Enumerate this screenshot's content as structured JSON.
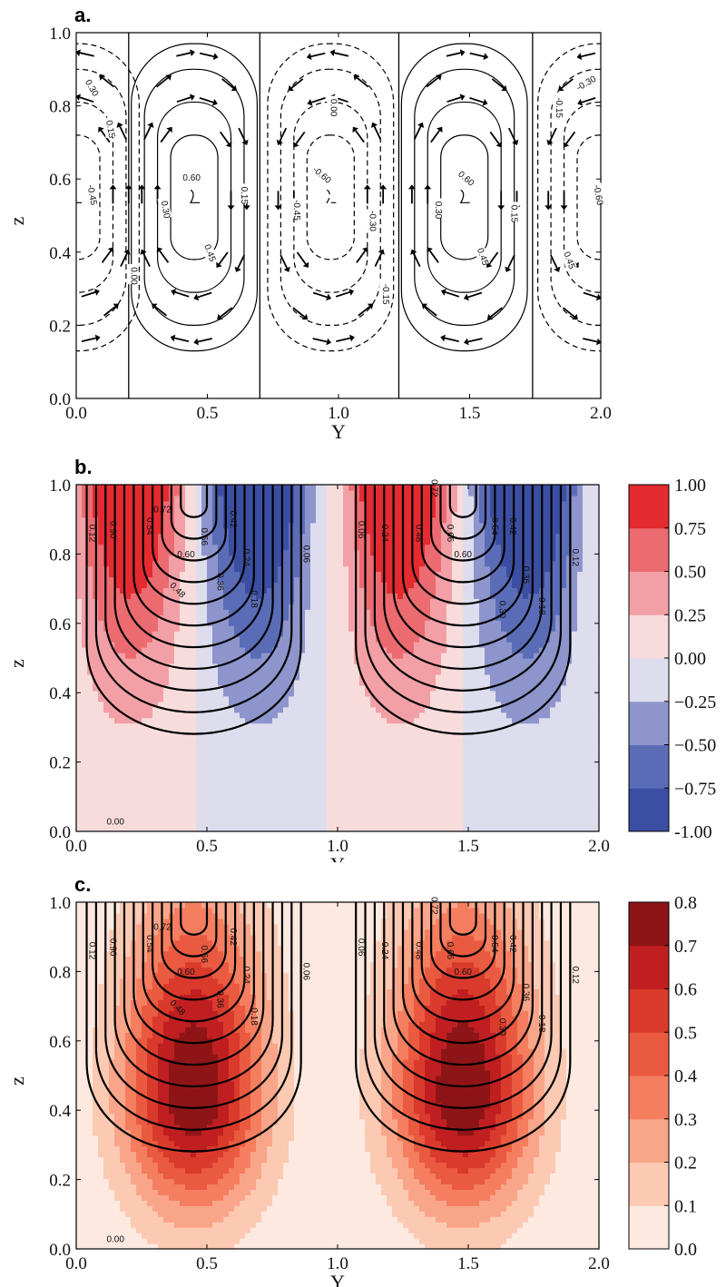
{
  "chart_data": [
    {
      "panel_label": "a.",
      "type": "contour",
      "xlabel": "Y",
      "ylabel": "z",
      "xlim": [
        0.0,
        2.0
      ],
      "ylim": [
        0.0,
        1.0
      ],
      "x_ticks": [
        "0.0",
        "0.5",
        "1.0",
        "1.5",
        "2.0"
      ],
      "y_ticks": [
        "0.0",
        "0.2",
        "0.4",
        "0.6",
        "0.8",
        "1.0"
      ],
      "overlay": "velocity vectors (circulation cells)",
      "cells": [
        {
          "center_y": 0.0,
          "sign": "negative",
          "peak": -0.6
        },
        {
          "center_y": 0.45,
          "sign": "positive",
          "peak": 0.6
        },
        {
          "center_y": 0.97,
          "sign": "negative",
          "peak": -0.6
        },
        {
          "center_y": 1.48,
          "sign": "positive",
          "peak": 0.6
        },
        {
          "center_y": 2.0,
          "sign": "negative",
          "peak": -0.6
        }
      ],
      "cell_boundaries_y": [
        0.2,
        0.7,
        1.23,
        1.74
      ],
      "contour_levels": [
        -0.6,
        -0.45,
        -0.3,
        -0.15,
        0.0,
        0.15,
        0.3,
        0.45,
        0.6
      ],
      "contour_labels": [
        "0.30",
        "0.15",
        "-0.45",
        "0.60",
        "0.30",
        "0.15",
        "0.45",
        "0.00",
        "-0.60",
        "-0.45",
        "-0.30",
        "-0.15",
        "0.00",
        "0.60",
        "0.30",
        "0.15",
        "0.45",
        "-0.30",
        "-0.15",
        "-0.60",
        "0.45"
      ]
    },
    {
      "panel_label": "b.",
      "type": "heatmap",
      "xlabel": "Y",
      "ylabel": "z",
      "xlim": [
        0.0,
        2.0
      ],
      "ylim": [
        0.0,
        1.0
      ],
      "x_ticks": [
        "0.0",
        "0.5",
        "1.0",
        "1.5",
        "2.0"
      ],
      "y_ticks": [
        "0.0",
        "0.2",
        "0.4",
        "0.6",
        "0.8",
        "1.0"
      ],
      "colorbar_ticks": [
        "1.00",
        "0.75",
        "0.50",
        "0.25",
        "0.00",
        "−0.25",
        "−0.50",
        "−0.75",
        "-1.00"
      ],
      "colorbar_levels": [
        -1.0,
        -0.75,
        -0.5,
        -0.25,
        0.0,
        0.25,
        0.5,
        0.75,
        1.0
      ],
      "colorbar_colors": [
        "#3b4ea1",
        "#5b6cb7",
        "#8d95cc",
        "#ddddee",
        "#f8dcdc",
        "#f2a0a6",
        "#ec6b70",
        "#e32b30"
      ],
      "lobe_centers": [
        {
          "y": 0.2,
          "sign": "positive"
        },
        {
          "y": 0.7,
          "sign": "negative"
        },
        {
          "y": 1.23,
          "sign": "positive"
        },
        {
          "y": 1.74,
          "sign": "negative"
        }
      ],
      "sign_change_y": [
        0.45,
        0.97,
        1.48
      ],
      "contour_centers": [
        0.45,
        1.48
      ],
      "contour_labels": [
        "0.12",
        "0.90",
        "0.54",
        "0.72",
        "0.66",
        "0.42",
        "0.60",
        "0.48",
        "0.36",
        "0.24",
        "0.18",
        "0.06",
        "0.06",
        "0.24",
        "0.48",
        "0.72",
        "0.66",
        "0.54",
        "0.42",
        "0.60",
        "0.36",
        "0.30",
        "0.12",
        "0.18",
        "0.00"
      ]
    },
    {
      "panel_label": "c.",
      "type": "heatmap",
      "xlabel": "Y",
      "ylabel": "z",
      "xlim": [
        0.0,
        2.0
      ],
      "ylim": [
        0.0,
        1.0
      ],
      "x_ticks": [
        "0.0",
        "0.5",
        "1.0",
        "1.5",
        "2.0"
      ],
      "y_ticks": [
        "0.0",
        "0.2",
        "0.4",
        "0.6",
        "0.8",
        "1.0"
      ],
      "colorbar_ticks": [
        "0.8",
        "0.7",
        "0.6",
        "0.5",
        "0.4",
        "0.3",
        "0.2",
        "0.1",
        "0.0"
      ],
      "colorbar_levels": [
        0.0,
        0.1,
        0.2,
        0.3,
        0.4,
        0.5,
        0.6,
        0.7,
        0.8
      ],
      "colorbar_colors": [
        "#fde9df",
        "#fcc9b2",
        "#f9a58a",
        "#f47e5f",
        "#ea5a41",
        "#da3a2c",
        "#c01f21",
        "#8e1517"
      ],
      "max_centers": [
        {
          "y": 0.45,
          "z": 0.45
        },
        {
          "y": 1.48,
          "z": 0.45
        }
      ],
      "contour_centers": [
        0.45,
        1.48
      ],
      "contour_labels": [
        "0.12",
        "0.90",
        "0.54",
        "0.72",
        "0.66",
        "0.42",
        "0.60",
        "0.48",
        "0.36",
        "0.24",
        "0.18",
        "0.06",
        "0.06",
        "0.24",
        "0.48",
        "0.72",
        "0.66",
        "0.54",
        "0.42",
        "0.60",
        "0.36",
        "0.30",
        "0.12",
        "0.18",
        "0.00"
      ]
    }
  ]
}
